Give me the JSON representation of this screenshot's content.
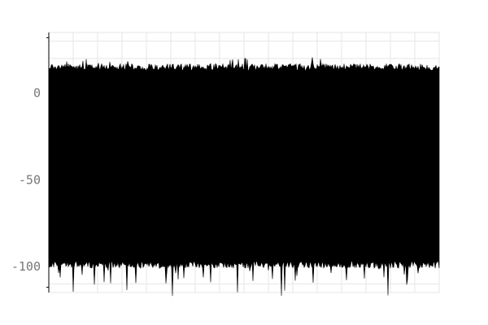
{
  "chart_data": {
    "type": "line",
    "title": "",
    "xlabel": "",
    "ylabel": "",
    "y_ticks": [
      {
        "value": 0,
        "label": "0"
      },
      {
        "value": -50,
        "label": "-50"
      },
      {
        "value": -100,
        "label": "-100"
      }
    ],
    "ylim": [
      -115,
      35
    ],
    "x_grid_count": 16,
    "y_grid_step": 10,
    "grid": true,
    "legend": "none",
    "series": [
      {
        "values_range": [
          -117,
          21
        ],
        "band": {
          "upper_typical": 17,
          "lower_typical": -101
        },
        "color": "#000000"
      }
    ]
  },
  "colors": {
    "grid": "#e6e6e6",
    "axis": "#000000",
    "tick_text": "#777777",
    "series": "#000000"
  }
}
